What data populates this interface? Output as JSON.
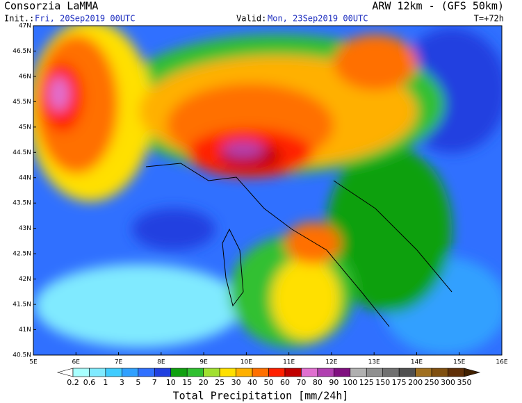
{
  "header": {
    "title": "Consorzia LaMMA",
    "model": "ARW 12km - (GFS 50km)",
    "init_label": "Init.:",
    "init": "Fri, 20Sep2019 00UTC",
    "valid_label": "Valid:",
    "valid": "Mon, 23Sep2019 00UTC",
    "step": "T=+72h"
  },
  "map": {
    "lat_labels": [
      "47N",
      "46.5N",
      "46N",
      "45.5N",
      "45N",
      "44.5N",
      "44N",
      "43.5N",
      "43N",
      "42.5N",
      "42N",
      "41.5N",
      "41N",
      "40.5N"
    ],
    "lon_labels": [
      "5E",
      "6E",
      "7E",
      "8E",
      "9E",
      "10E",
      "11E",
      "12E",
      "13E",
      "14E",
      "15E",
      "16E"
    ]
  },
  "legend": {
    "title": "Total Precipitation [mm/24h]",
    "labels": [
      "0.2",
      "0.6",
      "1",
      "3",
      "5",
      "7",
      "10",
      "15",
      "20",
      "25",
      "30",
      "40",
      "50",
      "60",
      "70",
      "80",
      "90",
      "100",
      "125",
      "150",
      "175",
      "200",
      "250",
      "300",
      "350"
    ],
    "colors": [
      "#ffffff",
      "#a8ffff",
      "#80eaff",
      "#40ccff",
      "#30a0ff",
      "#3070ff",
      "#2040e0",
      "#10a010",
      "#30c030",
      "#a0e030",
      "#ffe000",
      "#ffb000",
      "#ff7000",
      "#ff2000",
      "#c00000",
      "#e070d0",
      "#b040b0",
      "#801080",
      "#b0b0b0",
      "#909090",
      "#707070",
      "#505050",
      "#a07020",
      "#805010",
      "#603008",
      "#402000"
    ]
  }
}
